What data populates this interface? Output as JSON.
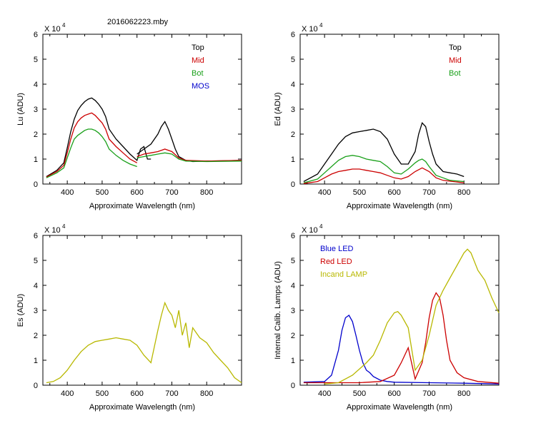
{
  "figure_title": "2016062223.mby",
  "scale_prefix": "X 10",
  "scale_exp": "4",
  "colors": {
    "black": "#000000",
    "red": "#cc0000",
    "green": "#1aa01a",
    "blue": "#0000cc",
    "olive": "#b8b800",
    "lightred": "#dd2222"
  },
  "chart_data": [
    {
      "id": "lu",
      "type": "line",
      "title": "2016062223.mby",
      "xlabel": "Approximate Wavelength (nm)",
      "ylabel": "Lu (ADU)",
      "xlim": [
        330,
        900
      ],
      "ylim": [
        0,
        6
      ],
      "y_scale": "x 10^4",
      "xticks": [
        400,
        500,
        600,
        700,
        800
      ],
      "yticks": [
        0,
        1,
        2,
        3,
        4,
        5,
        6
      ],
      "legend": [
        "Top",
        "Mid",
        "Bot",
        "MOS"
      ],
      "legend_colors": [
        "#000000",
        "#cc0000",
        "#1aa01a",
        "#0000cc"
      ],
      "series": [
        {
          "name": "Top",
          "color": "#000000",
          "x": [
            340,
            370,
            390,
            400,
            410,
            420,
            430,
            440,
            450,
            460,
            470,
            480,
            490,
            500,
            510,
            520,
            540,
            560,
            580,
            600,
            610,
            620,
            630,
            640
          ],
          "y": [
            0.3,
            0.55,
            0.85,
            1.45,
            2.1,
            2.6,
            2.95,
            3.15,
            3.3,
            3.4,
            3.45,
            3.35,
            3.2,
            3.0,
            2.7,
            2.2,
            1.8,
            1.5,
            1.2,
            0.95,
            1.4,
            1.5,
            1.0,
            1.0
          ]
        },
        {
          "name": "Top (right)",
          "color": "#000000",
          "x": [
            600,
            620,
            640,
            660,
            670,
            680,
            690,
            700,
            710,
            720,
            740,
            760,
            800,
            850,
            900
          ],
          "y": [
            1.2,
            1.4,
            1.6,
            2.0,
            2.3,
            2.5,
            2.2,
            1.8,
            1.4,
            1.1,
            0.95,
            0.9,
            0.92,
            0.93,
            0.95
          ]
        },
        {
          "name": "Mid",
          "color": "#cc0000",
          "x": [
            340,
            370,
            390,
            400,
            410,
            420,
            430,
            440,
            450,
            460,
            470,
            480,
            490,
            500,
            510,
            520,
            540,
            560,
            580,
            600
          ],
          "y": [
            0.28,
            0.5,
            0.75,
            1.25,
            1.8,
            2.25,
            2.5,
            2.65,
            2.75,
            2.8,
            2.85,
            2.75,
            2.6,
            2.45,
            2.2,
            1.8,
            1.5,
            1.25,
            1.0,
            0.85
          ]
        },
        {
          "name": "Mid (right)",
          "color": "#cc0000",
          "x": [
            600,
            620,
            640,
            660,
            680,
            700,
            720,
            740,
            800,
            900
          ],
          "y": [
            1.1,
            1.2,
            1.25,
            1.3,
            1.4,
            1.3,
            1.05,
            0.95,
            0.92,
            0.95
          ]
        },
        {
          "name": "Bot",
          "color": "#1aa01a",
          "x": [
            340,
            370,
            390,
            400,
            410,
            420,
            430,
            440,
            450,
            460,
            470,
            480,
            490,
            500,
            510,
            520,
            540,
            560,
            580,
            600
          ],
          "y": [
            0.25,
            0.45,
            0.65,
            1.05,
            1.45,
            1.8,
            1.95,
            2.05,
            2.15,
            2.2,
            2.2,
            2.15,
            2.05,
            1.9,
            1.7,
            1.4,
            1.15,
            0.95,
            0.8,
            0.7
          ]
        },
        {
          "name": "Bot (right)",
          "color": "#1aa01a",
          "x": [
            600,
            620,
            640,
            660,
            680,
            700,
            720,
            740,
            800,
            900
          ],
          "y": [
            1.05,
            1.1,
            1.15,
            1.2,
            1.25,
            1.2,
            1.0,
            0.92,
            0.9,
            0.92
          ]
        }
      ]
    },
    {
      "id": "ed",
      "type": "line",
      "xlabel": "Approximate Wavelength (nm)",
      "ylabel": "Ed  (ADU)",
      "xlim": [
        330,
        900
      ],
      "ylim": [
        0,
        6
      ],
      "y_scale": "x 10^4",
      "xticks": [
        400,
        500,
        600,
        700,
        800
      ],
      "yticks": [
        0,
        1,
        2,
        3,
        4,
        5,
        6
      ],
      "legend": [
        "Top",
        "Mid",
        "Bot"
      ],
      "legend_colors": [
        "#000000",
        "#cc0000",
        "#1aa01a"
      ],
      "series": [
        {
          "name": "Top",
          "color": "#000000",
          "x": [
            340,
            380,
            400,
            420,
            440,
            460,
            480,
            500,
            520,
            540,
            560,
            580,
            600,
            620,
            640,
            660,
            670,
            680,
            690,
            700,
            710,
            720,
            740,
            760,
            780,
            800
          ],
          "y": [
            0.1,
            0.4,
            0.8,
            1.2,
            1.6,
            1.9,
            2.05,
            2.1,
            2.15,
            2.2,
            2.1,
            1.8,
            1.2,
            0.8,
            0.8,
            1.3,
            2.0,
            2.45,
            2.3,
            1.7,
            1.2,
            0.8,
            0.5,
            0.45,
            0.4,
            0.3
          ]
        },
        {
          "name": "Bot",
          "color": "#1aa01a",
          "x": [
            340,
            380,
            400,
            420,
            440,
            460,
            480,
            500,
            520,
            540,
            560,
            580,
            600,
            620,
            640,
            660,
            670,
            680,
            690,
            700,
            720,
            740,
            760,
            800
          ],
          "y": [
            0.05,
            0.2,
            0.45,
            0.7,
            0.95,
            1.1,
            1.15,
            1.1,
            1.0,
            0.95,
            0.9,
            0.7,
            0.45,
            0.4,
            0.6,
            0.85,
            0.95,
            1.0,
            0.9,
            0.7,
            0.35,
            0.25,
            0.15,
            0.1
          ]
        },
        {
          "name": "Mid",
          "color": "#cc0000",
          "x": [
            340,
            380,
            400,
            420,
            440,
            460,
            480,
            500,
            520,
            540,
            560,
            580,
            600,
            620,
            640,
            660,
            680,
            700,
            720,
            740,
            800
          ],
          "y": [
            0.02,
            0.1,
            0.25,
            0.4,
            0.5,
            0.55,
            0.6,
            0.6,
            0.55,
            0.5,
            0.45,
            0.35,
            0.25,
            0.2,
            0.3,
            0.5,
            0.65,
            0.5,
            0.25,
            0.15,
            0.05
          ]
        }
      ]
    },
    {
      "id": "es",
      "type": "line",
      "xlabel": "Approximate Wavelength (nm)",
      "ylabel": "Es  (ADU)",
      "xlim": [
        330,
        900
      ],
      "ylim": [
        0,
        6
      ],
      "y_scale": "x 10^4",
      "xticks": [
        400,
        500,
        600,
        700,
        800
      ],
      "yticks": [
        0,
        1,
        2,
        3,
        4,
        5,
        6
      ],
      "series": [
        {
          "name": "Es",
          "color": "#b8b800",
          "x": [
            340,
            360,
            380,
            400,
            420,
            440,
            460,
            480,
            500,
            520,
            540,
            560,
            580,
            600,
            620,
            640,
            660,
            670,
            680,
            690,
            700,
            710,
            720,
            730,
            740,
            750,
            760,
            780,
            800,
            820,
            840,
            860,
            880,
            900
          ],
          "y": [
            0.1,
            0.15,
            0.3,
            0.6,
            1.0,
            1.35,
            1.6,
            1.75,
            1.8,
            1.85,
            1.9,
            1.85,
            1.8,
            1.6,
            1.2,
            0.9,
            2.2,
            2.8,
            3.3,
            3.0,
            2.8,
            2.3,
            3.0,
            2.0,
            2.5,
            1.5,
            2.3,
            1.9,
            1.7,
            1.3,
            1.0,
            0.7,
            0.3,
            0.1
          ]
        }
      ]
    },
    {
      "id": "lamps",
      "type": "line",
      "xlabel": "Approximate Wavelength (nm)",
      "ylabel": "Internal Calib. Lamps (ADU)",
      "xlim": [
        330,
        900
      ],
      "ylim": [
        0,
        6
      ],
      "y_scale": "x 10^4",
      "xticks": [
        400,
        500,
        600,
        700,
        800
      ],
      "yticks": [
        0,
        1,
        2,
        3,
        4,
        5,
        6
      ],
      "legend": [
        "Blue LED",
        "Red LED",
        "Incand LAMP"
      ],
      "legend_colors": [
        "#0000cc",
        "#cc0000",
        "#b8b800"
      ],
      "series": [
        {
          "name": "Blue LED",
          "color": "#0000cc",
          "x": [
            340,
            400,
            420,
            440,
            450,
            460,
            470,
            480,
            490,
            500,
            510,
            520,
            530,
            540,
            560,
            580,
            600,
            700,
            800,
            900
          ],
          "y": [
            0.12,
            0.15,
            0.4,
            1.4,
            2.2,
            2.7,
            2.8,
            2.55,
            2.0,
            1.4,
            0.9,
            0.6,
            0.5,
            0.35,
            0.2,
            0.15,
            0.12,
            0.1,
            0.08,
            0.05
          ]
        },
        {
          "name": "Red LED",
          "color": "#cc0000",
          "x": [
            340,
            500,
            560,
            600,
            620,
            640,
            660,
            680,
            690,
            700,
            710,
            720,
            730,
            740,
            750,
            760,
            780,
            800,
            840,
            900
          ],
          "y": [
            0.1,
            0.1,
            0.15,
            0.4,
            0.9,
            1.5,
            0.25,
            0.9,
            1.7,
            2.7,
            3.4,
            3.7,
            3.5,
            2.8,
            1.8,
            1.0,
            0.5,
            0.3,
            0.15,
            0.08
          ]
        },
        {
          "name": "Incand LAMP",
          "color": "#b8b800",
          "x": [
            400,
            440,
            480,
            520,
            540,
            560,
            580,
            600,
            610,
            620,
            640,
            660,
            680,
            700,
            720,
            740,
            760,
            780,
            800,
            810,
            820,
            840,
            860,
            880,
            900
          ],
          "y": [
            0.05,
            0.1,
            0.4,
            0.9,
            1.2,
            1.8,
            2.5,
            2.9,
            2.95,
            2.8,
            2.3,
            0.6,
            1.0,
            2.0,
            3.2,
            3.8,
            4.3,
            4.8,
            5.3,
            5.45,
            5.3,
            4.6,
            4.2,
            3.5,
            2.9
          ]
        }
      ]
    }
  ]
}
